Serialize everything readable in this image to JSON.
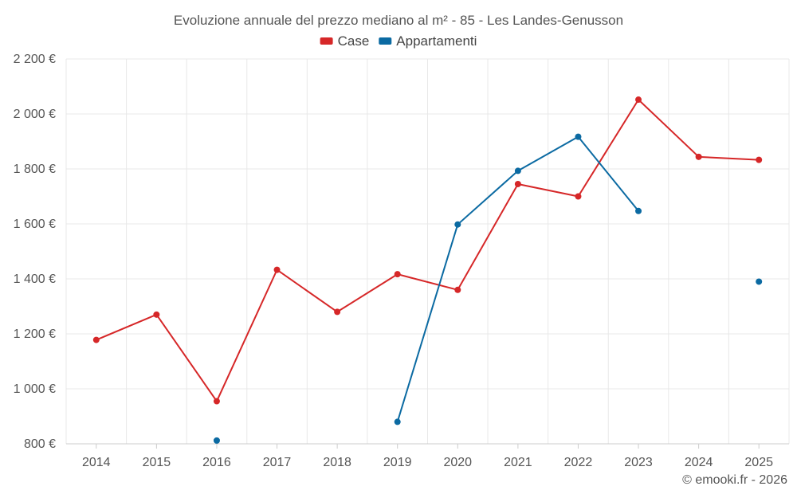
{
  "chart_data": {
    "type": "line",
    "title": "Evoluzione annuale del prezzo mediano al m² - 85 - Les Landes-Genusson",
    "categories": [
      "2014",
      "2015",
      "2016",
      "2017",
      "2018",
      "2019",
      "2020",
      "2021",
      "2022",
      "2023",
      "2024",
      "2025"
    ],
    "ylim": [
      800,
      2200
    ],
    "yticks": [
      800,
      1000,
      1200,
      1400,
      1600,
      1800,
      2000,
      2200
    ],
    "ytick_labels": [
      "800 €",
      "1 000 €",
      "1 200 €",
      "1 400 €",
      "1 600 €",
      "1 800 €",
      "2 000 €",
      "2 200 €"
    ],
    "grid": true,
    "legend_position": "top-center",
    "series": [
      {
        "name": "Case",
        "color": "#d62728",
        "values": [
          1178,
          1270,
          955,
          1433,
          1280,
          1417,
          1360,
          1745,
          1700,
          2052,
          1844,
          1833
        ]
      },
      {
        "name": "Appartamenti",
        "color": "#0b6aa2",
        "values": [
          null,
          null,
          812,
          null,
          null,
          880,
          1598,
          1793,
          1917,
          1647,
          null,
          1390
        ]
      }
    ]
  },
  "credit": "© emooki.fr - 2026"
}
